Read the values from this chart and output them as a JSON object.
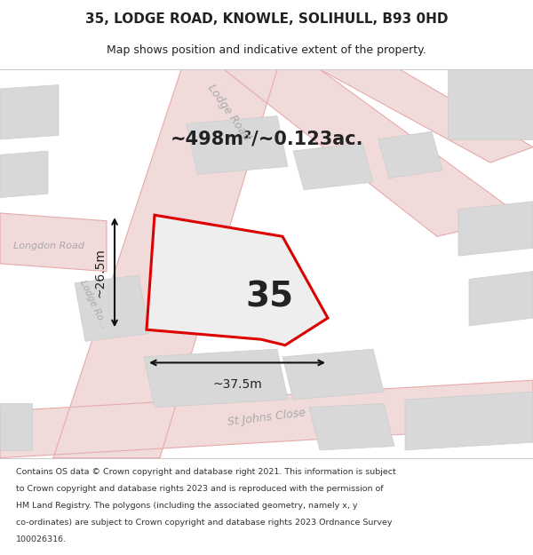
{
  "title_line1": "35, LODGE ROAD, KNOWLE, SOLIHULL, B93 0HD",
  "title_line2": "Map shows position and indicative extent of the property.",
  "area_text": "~498m²/~0.123ac.",
  "number_label": "35",
  "dim_horiz": "~37.5m",
  "dim_vert": "~26.5m",
  "footer_lines": [
    "Contains OS data © Crown copyright and database right 2021. This information is subject",
    "to Crown copyright and database rights 2023 and is reproduced with the permission of",
    "HM Land Registry. The polygons (including the associated geometry, namely x, y",
    "co-ordinates) are subject to Crown copyright and database rights 2023 Ordnance Survey",
    "100026316."
  ],
  "map_bg": "#f5f0f0",
  "road_color": "#f0dada",
  "road_line_color": "#e8aaaa",
  "building_fill": "#d8d8d8",
  "building_edge": "#cccccc",
  "plot_fill": "#eeeeee",
  "plot_edge": "#dd0000",
  "dim_line_color": "#111111",
  "text_dark": "#222222",
  "text_road": "#aaaaaa",
  "footer_color": "#333333",
  "white": "#ffffff"
}
